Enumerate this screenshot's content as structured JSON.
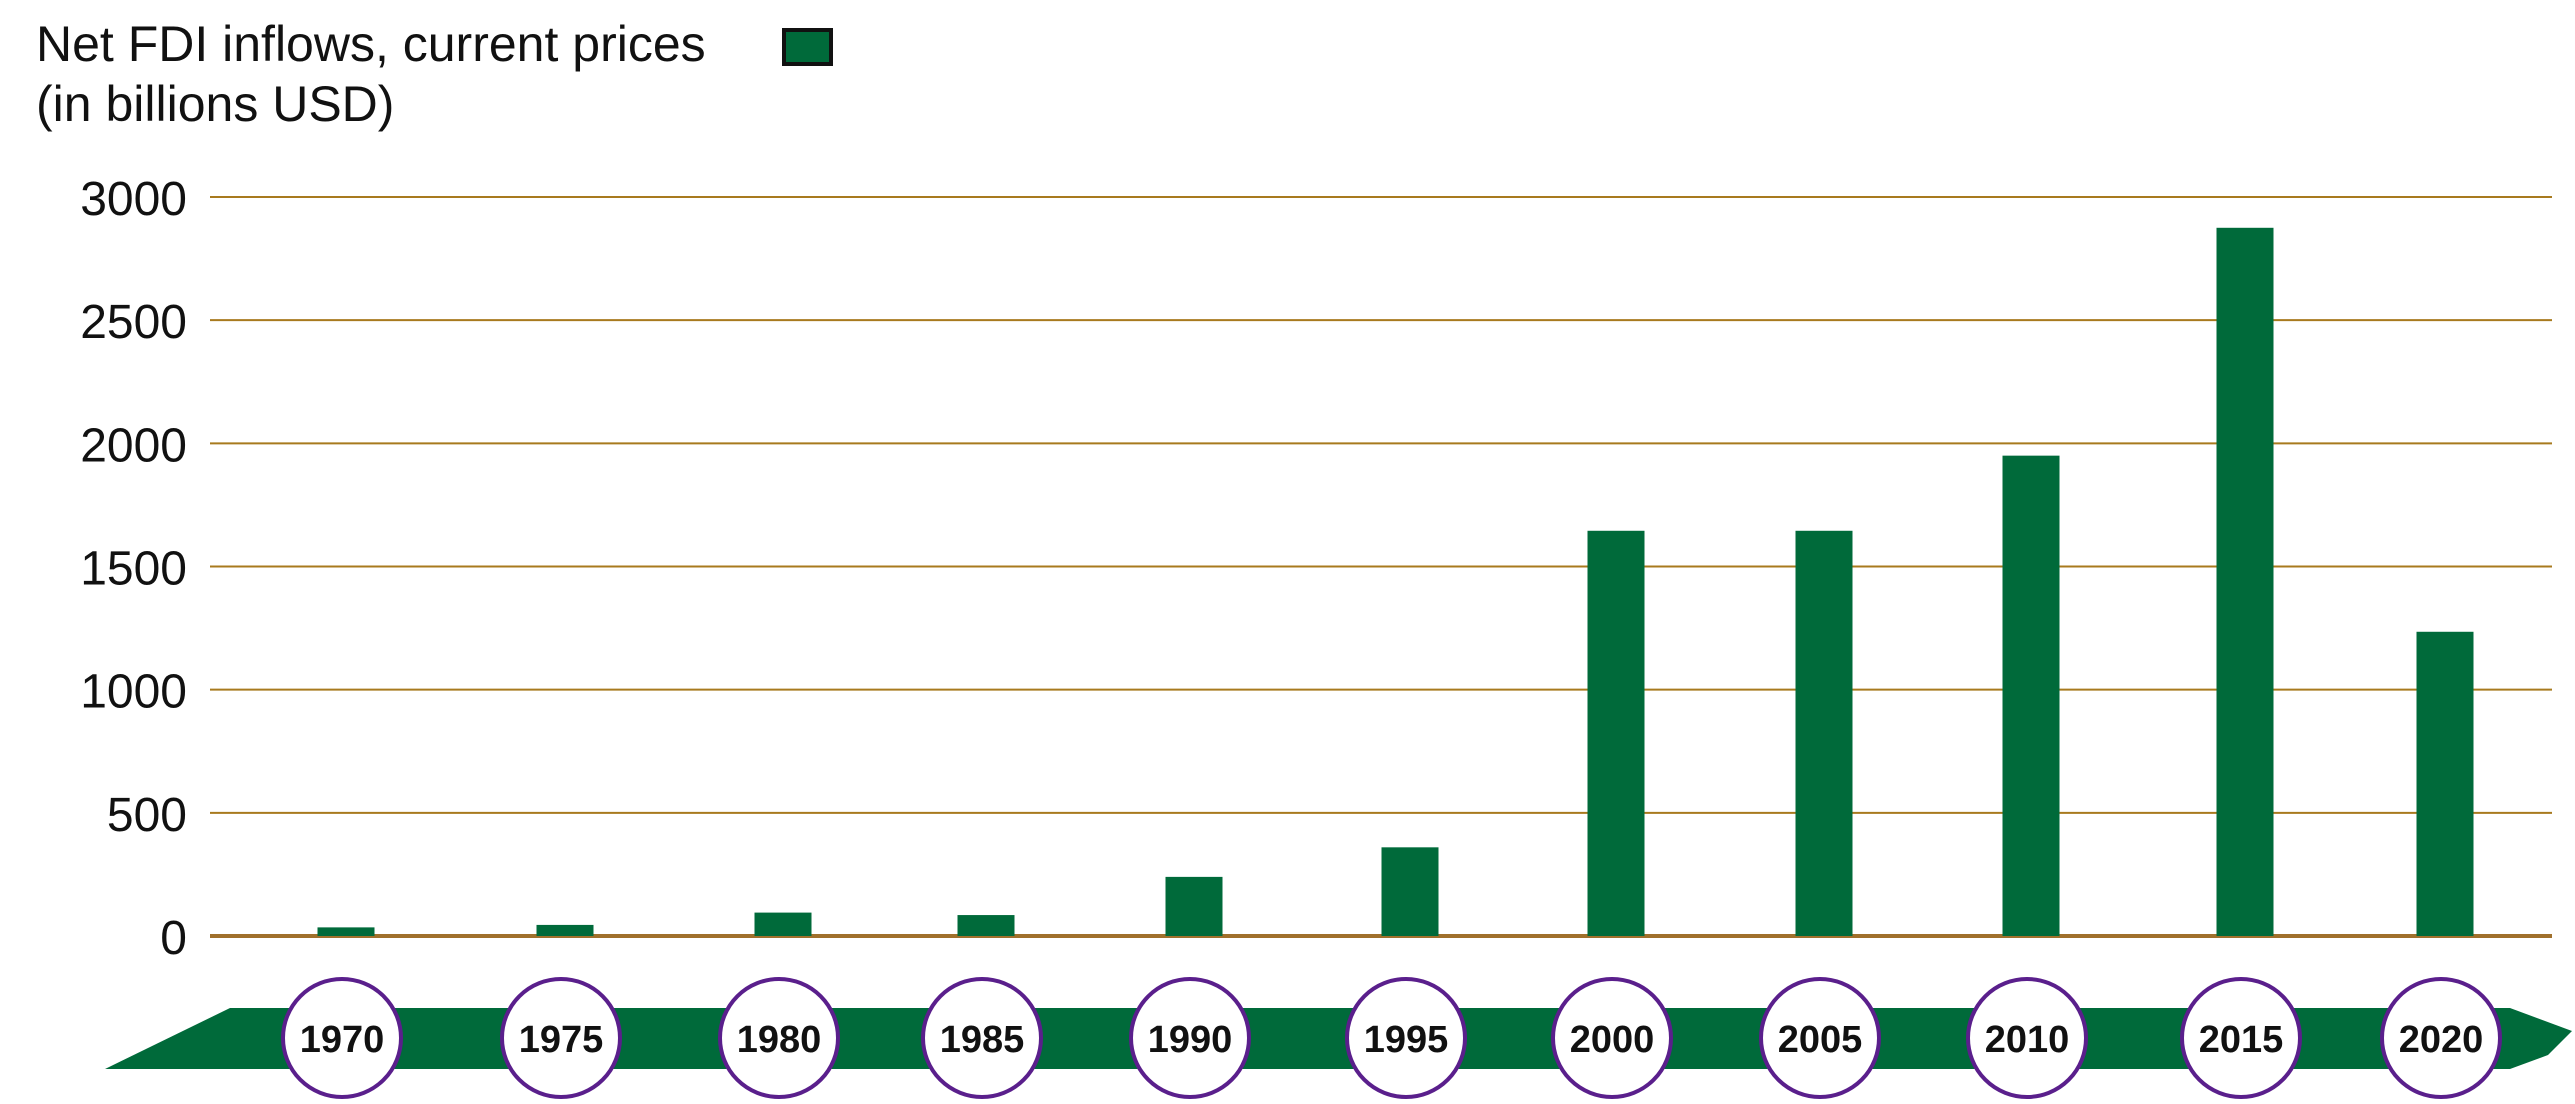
{
  "chart_data": {
    "type": "bar",
    "title": "Net FDI inflows, current prices",
    "subtitle": "(in billions USD)",
    "categories": [
      "1970",
      "1975",
      "1980",
      "1985",
      "1990",
      "1995",
      "2000",
      "2005",
      "2010",
      "2015",
      "2020"
    ],
    "series": [
      {
        "name": "",
        "values": [
          35,
          45,
          95,
          85,
          240,
          360,
          1645,
          1645,
          1950,
          2875,
          1235
        ]
      }
    ],
    "yticks": [
      "0",
      "500",
      "1000",
      "1500",
      "2000",
      "2500",
      "3000"
    ],
    "ylim": [
      0,
      3000
    ],
    "xlabel": "",
    "ylabel": "",
    "grid": true,
    "legend_placement": "top-left"
  },
  "colors": {
    "bar": "#006a3a",
    "gridline": "#a87a1e",
    "baseline": "#a0702c",
    "ribbon": "#006a3a",
    "circle_border": "#5a1f8c",
    "circle_fill": "#ffffff",
    "text": "#111111"
  }
}
